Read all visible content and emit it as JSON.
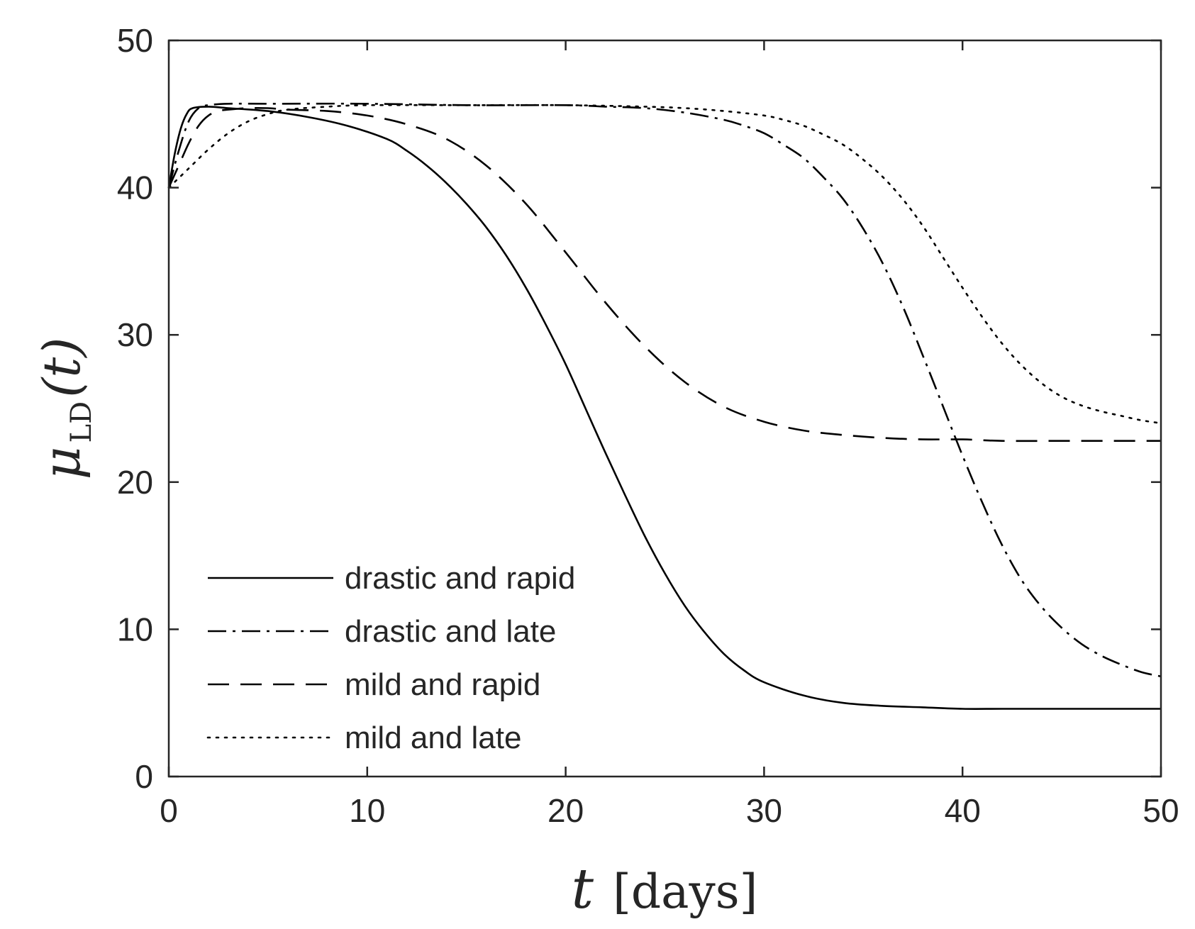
{
  "chart_data": {
    "type": "line",
    "title": "",
    "xlabel": {
      "var": "t",
      "unit": "[days]"
    },
    "ylabel": {
      "var": "μ",
      "subscript": "LD",
      "arg": "(t)"
    },
    "xlim": [
      0,
      50
    ],
    "ylim": [
      0,
      50
    ],
    "xticks": [
      "0",
      "10",
      "20",
      "30",
      "40",
      "50"
    ],
    "yticks": [
      "0",
      "10",
      "20",
      "30",
      "40",
      "50"
    ],
    "grid": false,
    "legend_position": "bottom-left",
    "line_color": "#000000",
    "series": [
      {
        "name": "drastic and rapid",
        "style": "solid",
        "x": [
          0,
          0.3,
          0.6,
          0.9,
          1.2,
          2,
          3,
          5,
          7,
          9,
          11,
          12,
          13,
          14,
          15,
          16,
          17,
          18,
          19,
          20,
          21,
          22,
          23,
          24,
          25,
          26,
          27,
          28,
          29,
          30,
          32,
          34,
          36,
          38,
          40,
          42,
          45,
          50
        ],
        "values": [
          40,
          42.3,
          44,
          45,
          45.4,
          45.5,
          45.4,
          45.2,
          44.8,
          44.2,
          43.3,
          42.5,
          41.5,
          40.3,
          38.9,
          37.3,
          35.4,
          33.2,
          30.7,
          28,
          25,
          22,
          19.1,
          16.3,
          13.8,
          11.6,
          9.8,
          8.3,
          7.2,
          6.4,
          5.5,
          5,
          4.8,
          4.7,
          4.6,
          4.6,
          4.6,
          4.6
        ]
      },
      {
        "name": "drastic and late",
        "style": "dashdot",
        "x": [
          0,
          0.5,
          1,
          1.5,
          2,
          3,
          5,
          10,
          15,
          20,
          22,
          24,
          26,
          28,
          29,
          30,
          31,
          32,
          33,
          34,
          35,
          36,
          37,
          38,
          39,
          40,
          41,
          42,
          43,
          44,
          45,
          46,
          47,
          48,
          49,
          50
        ],
        "values": [
          40,
          42.5,
          44.5,
          45.4,
          45.6,
          45.7,
          45.7,
          45.7,
          45.6,
          45.6,
          45.5,
          45.4,
          45.1,
          44.6,
          44.2,
          43.7,
          42.9,
          42,
          40.7,
          39.2,
          37.2,
          34.8,
          31.9,
          28.6,
          25.2,
          21.8,
          18.6,
          15.7,
          13.3,
          11.5,
          10.1,
          9,
          8.2,
          7.6,
          7.1,
          6.8
        ]
      },
      {
        "name": "mild and rapid",
        "style": "dashed",
        "x": [
          0,
          0.5,
          1,
          1.5,
          2,
          2.5,
          3,
          4,
          5,
          6,
          8,
          10,
          12,
          14,
          16,
          18,
          20,
          22,
          24,
          26,
          28,
          30,
          32,
          34,
          36,
          38,
          40,
          42,
          45,
          50
        ],
        "values": [
          40,
          41.5,
          43,
          44.2,
          44.9,
          45.2,
          45.3,
          45.4,
          45.4,
          45.3,
          45.2,
          44.9,
          44.3,
          43.3,
          41.5,
          38.9,
          35.6,
          32.2,
          29.2,
          26.8,
          25.1,
          24.1,
          23.5,
          23.2,
          23,
          22.9,
          22.9,
          22.8,
          22.8,
          22.8
        ]
      },
      {
        "name": "mild and late",
        "style": "dotted",
        "x": [
          0,
          1,
          2,
          3,
          4,
          5,
          6,
          8,
          10,
          15,
          20,
          24,
          26,
          28,
          30,
          31,
          32,
          33,
          34,
          35,
          36,
          37,
          38,
          39,
          40,
          41,
          42,
          43,
          44,
          45,
          46,
          47,
          48,
          49,
          50
        ],
        "values": [
          40,
          41.3,
          42.6,
          43.7,
          44.5,
          45,
          45.3,
          45.5,
          45.6,
          45.6,
          45.6,
          45.5,
          45.4,
          45.2,
          44.9,
          44.6,
          44.2,
          43.6,
          42.9,
          41.9,
          40.7,
          39.2,
          37.4,
          35.3,
          33.2,
          31.2,
          29.4,
          27.9,
          26.7,
          25.8,
          25.2,
          24.8,
          24.5,
          24.2,
          24
        ]
      }
    ]
  }
}
